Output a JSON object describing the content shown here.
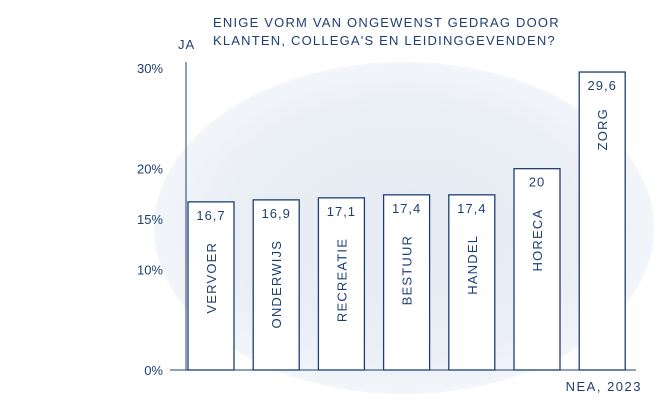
{
  "chart_data": {
    "type": "bar",
    "title_lines": [
      "ENIGE VORM VAN ONGEWENST GEDRAG DOOR",
      "KLANTEN, COLLEGA'S EN LEIDINGGEVENDEN?"
    ],
    "ylabel": "JA",
    "yticks": [
      "30%",
      "20%",
      "15%",
      "10%",
      "0%"
    ],
    "ytick_values": [
      30,
      20,
      15,
      10,
      0
    ],
    "ylim": [
      0,
      30
    ],
    "categories": [
      "VERVOER",
      "ONDERWIJS",
      "RECREATIE",
      "BESTUUR",
      "HANDEL",
      "HORECA",
      "ZORG"
    ],
    "values": [
      16.7,
      16.9,
      17.1,
      17.4,
      17.4,
      20,
      29.6
    ],
    "value_labels": [
      "16,7",
      "16,9",
      "17,1",
      "17,4",
      "17,4",
      "20",
      "29,6"
    ],
    "source": "NEA, 2023",
    "colors": {
      "primary": "#1d3f73",
      "background_ellipse": "#e8edf4"
    }
  }
}
